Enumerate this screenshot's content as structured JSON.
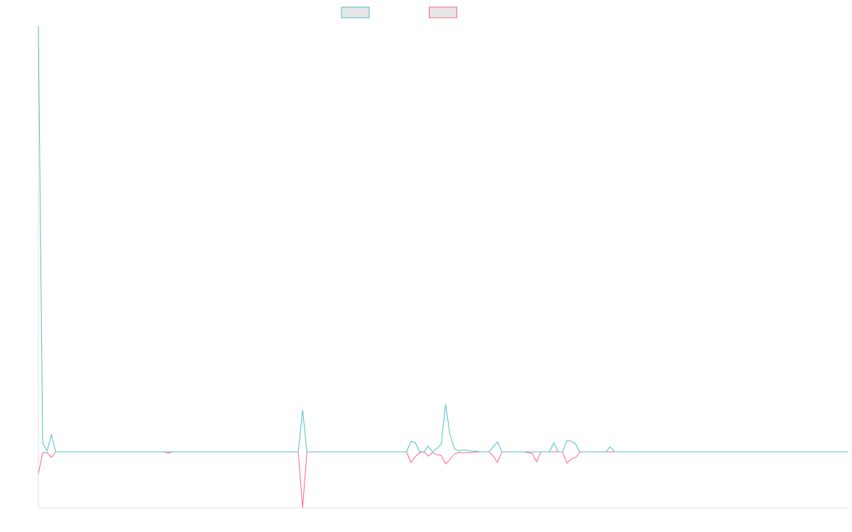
{
  "chart_data": {
    "type": "line",
    "legend": "top",
    "grid": false,
    "ylim": [
      -79,
      601
    ],
    "series": [
      {
        "color": "rgb(255,99,132)",
        "values": [
          -31,
          -1,
          -1,
          -8,
          0,
          0,
          0,
          0,
          0,
          0,
          0,
          0,
          0,
          0,
          0,
          0,
          0,
          0,
          0,
          0,
          0,
          0,
          0,
          0,
          0,
          0,
          0,
          0,
          0,
          0,
          -2,
          0,
          0,
          0,
          0,
          0,
          0,
          0,
          0,
          0,
          0,
          0,
          0,
          0,
          0,
          0,
          0,
          0,
          0,
          0,
          0,
          0,
          0,
          0,
          0,
          0,
          0,
          0,
          0,
          0,
          0,
          -79,
          0,
          0,
          0,
          0,
          0,
          0,
          0,
          0,
          0,
          0,
          0,
          0,
          0,
          0,
          0,
          0,
          0,
          0,
          0,
          0,
          0,
          0,
          0,
          0,
          -15,
          -7,
          -1,
          0,
          -6,
          -1,
          -4,
          -5,
          -17,
          -11,
          -3,
          -1,
          -1,
          -1,
          -1,
          0,
          0,
          0,
          0,
          -6,
          -15,
          0,
          0,
          0,
          0,
          0,
          0,
          -1,
          -2,
          -14,
          0,
          0,
          0,
          0,
          0,
          0,
          -16,
          -10,
          -8,
          0,
          0,
          0,
          0,
          0,
          0,
          0,
          0,
          0,
          0,
          0,
          0,
          0,
          0,
          0,
          0,
          0,
          0,
          0,
          0,
          0,
          0,
          0,
          0,
          0,
          0,
          0,
          0,
          0,
          0,
          0,
          0,
          0,
          0,
          0,
          0,
          0,
          0,
          0,
          0,
          0,
          0,
          0,
          0,
          0,
          0,
          0,
          0,
          0,
          0,
          0,
          0,
          0,
          0,
          0,
          0,
          0,
          0,
          0,
          0,
          0,
          0,
          0
        ]
      },
      {
        "color": "rgb(75,192,192)",
        "values": [
          601,
          13,
          1,
          24,
          0,
          0,
          0,
          0,
          0,
          0,
          0,
          0,
          0,
          0,
          0,
          0,
          0,
          0,
          0,
          0,
          0,
          0,
          0,
          0,
          0,
          0,
          0,
          0,
          0,
          0,
          0,
          0,
          0,
          0,
          0,
          0,
          0,
          0,
          0,
          0,
          0,
          0,
          0,
          0,
          0,
          0,
          0,
          0,
          0,
          0,
          0,
          0,
          0,
          0,
          0,
          0,
          0,
          0,
          0,
          0,
          0,
          59,
          0,
          0,
          0,
          0,
          0,
          0,
          0,
          0,
          0,
          0,
          0,
          0,
          0,
          0,
          0,
          0,
          0,
          0,
          0,
          0,
          0,
          0,
          0,
          0,
          15,
          13,
          0,
          0,
          8,
          0,
          5,
          11,
          67,
          25,
          5,
          1,
          3,
          2,
          1,
          1,
          0,
          0,
          0,
          7,
          14,
          0,
          0,
          0,
          0,
          0,
          0,
          0,
          0,
          0,
          0,
          0,
          0,
          13,
          0,
          0,
          16,
          15,
          11,
          0,
          0,
          0,
          0,
          0,
          0,
          0,
          7,
          0,
          0,
          0,
          0,
          0,
          0,
          0,
          0,
          0,
          0,
          0,
          0,
          0,
          0,
          0,
          0,
          0,
          0,
          0,
          0,
          0,
          0,
          0,
          0,
          0,
          0,
          0,
          0,
          0,
          0,
          0,
          0,
          0,
          0,
          0,
          0,
          0,
          0,
          0,
          0,
          0,
          0,
          0,
          0,
          0,
          0,
          0,
          0,
          0,
          0,
          0,
          0,
          0,
          0,
          0
        ]
      }
    ]
  }
}
